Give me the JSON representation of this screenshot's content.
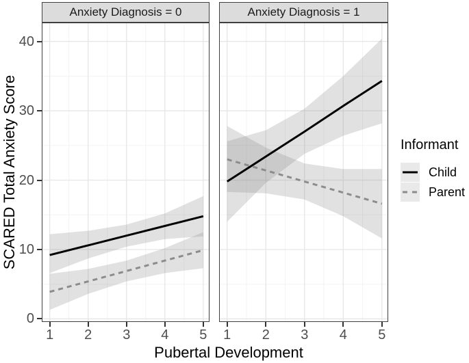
{
  "chart_data": {
    "type": "line",
    "xlabel": "Pubertal Development",
    "ylabel": "SCARED Total Anxiety Score",
    "x": [
      1,
      2,
      3,
      4,
      5
    ],
    "xticks": [
      1,
      2,
      3,
      4,
      5
    ],
    "yticks": [
      0,
      10,
      20,
      30,
      40
    ],
    "xticks_minor": [
      1.5,
      2.5,
      3.5,
      4.5
    ],
    "yticks_minor": [
      5,
      15,
      25,
      35
    ],
    "xlim": [
      0.81,
      5.145
    ],
    "ylim": [
      -0.35,
      42.62
    ],
    "grid": {
      "major": true,
      "minor": true
    },
    "facets": [
      {
        "label": "Anxiety Diagnosis = 0",
        "series": [
          {
            "name": "Child",
            "color": "#000000",
            "dasharray": "",
            "y": [
              9.2,
              10.6,
              12.0,
              13.4,
              14.8
            ],
            "upper": [
              12.2,
              12.7,
              13.6,
              15.2,
              17.7
            ],
            "lower": [
              6.6,
              8.7,
              10.4,
              11.5,
              11.9
            ]
          },
          {
            "name": "Parent",
            "color": "#8c8c8c",
            "dasharray": "7 6",
            "y": [
              3.9,
              5.4,
              6.9,
              8.4,
              9.9
            ],
            "upper": [
              6.5,
              7.2,
              8.4,
              10.2,
              12.5
            ],
            "lower": [
              1.3,
              3.6,
              5.4,
              6.6,
              7.3
            ]
          }
        ]
      },
      {
        "label": "Anxiety Diagnosis = 1",
        "series": [
          {
            "name": "Child",
            "color": "#000000",
            "dasharray": "",
            "y": [
              19.8,
              23.4,
              27.0,
              30.7,
              34.3
            ],
            "upper": [
              25.6,
              27.2,
              30.3,
              35.0,
              40.4
            ],
            "lower": [
              14.0,
              19.6,
              23.8,
              26.4,
              28.2
            ]
          },
          {
            "name": "Parent",
            "color": "#8c8c8c",
            "dasharray": "7 6",
            "y": [
              23.0,
              21.4,
              19.8,
              18.2,
              16.6
            ],
            "upper": [
              27.8,
              24.7,
              22.4,
              21.6,
              21.6
            ],
            "lower": [
              18.3,
              18.1,
              17.2,
              14.8,
              11.6
            ]
          }
        ]
      }
    ],
    "legend": {
      "title": "Informant",
      "position": "right",
      "entries": [
        {
          "label": "Child",
          "color": "#000000",
          "dasharray": ""
        },
        {
          "label": "Parent",
          "color": "#8c8c8c",
          "dasharray": "7 7"
        }
      ]
    },
    "style": {
      "band_color": "rgba(128,128,128,0.24)",
      "grid_major_color": "#e6e6e6",
      "grid_minor_color": "#f3f3f3",
      "line_width": 3
    }
  }
}
